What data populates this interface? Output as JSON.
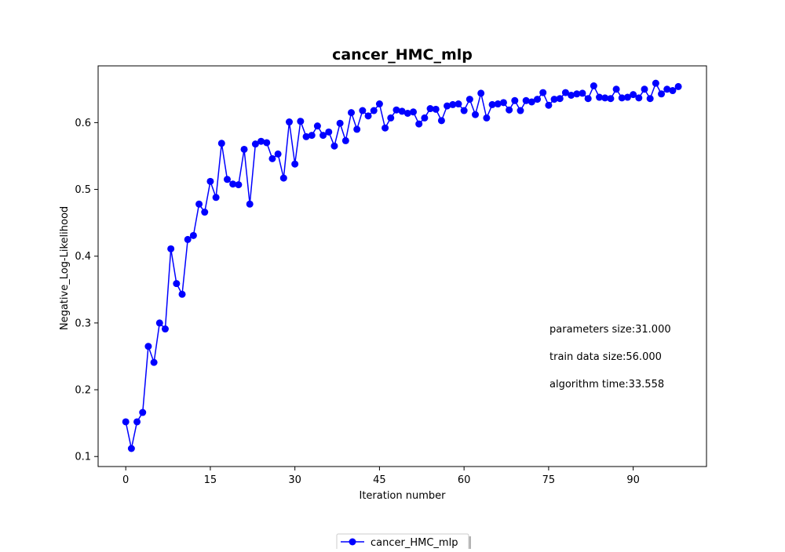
{
  "chart_data": {
    "type": "line",
    "title": "cancer_HMC_mlp",
    "xlabel": "Iteration number",
    "ylabel": "Negative_Log-Likelihood",
    "xlim": [
      -4.9,
      103
    ],
    "ylim": [
      0.085,
      0.685
    ],
    "xticks": [
      0,
      15,
      30,
      45,
      60,
      75,
      90
    ],
    "yticks": [
      0.1,
      0.2,
      0.3,
      0.4,
      0.5,
      0.6
    ],
    "ytick_labels": [
      "0.1",
      "0.2",
      "0.3",
      "0.4",
      "0.5",
      "0.6"
    ],
    "grid": false,
    "legend_position": "bottom-center",
    "series": [
      {
        "name": "cancer_HMC_mlp",
        "color": "#0000ff",
        "marker": "circle",
        "x": [
          0,
          1,
          2,
          3,
          4,
          5,
          6,
          7,
          8,
          9,
          10,
          11,
          12,
          13,
          14,
          15,
          16,
          17,
          18,
          19,
          20,
          21,
          22,
          23,
          24,
          25,
          26,
          27,
          28,
          29,
          30,
          31,
          32,
          33,
          34,
          35,
          36,
          37,
          38,
          39,
          40,
          41,
          42,
          43,
          44,
          45,
          46,
          47,
          48,
          49,
          50,
          51,
          52,
          53,
          54,
          55,
          56,
          57,
          58,
          59,
          60,
          61,
          62,
          63,
          64,
          65,
          66,
          67,
          68,
          69,
          70,
          71,
          72,
          73,
          74,
          75,
          76,
          77,
          78,
          79,
          80,
          81,
          82,
          83,
          84,
          85,
          86,
          87,
          88,
          89,
          90,
          91,
          92,
          93,
          94,
          95,
          96,
          97,
          98
        ],
        "values": [
          0.152,
          0.112,
          0.152,
          0.166,
          0.265,
          0.241,
          0.3,
          0.291,
          0.411,
          0.359,
          0.343,
          0.425,
          0.431,
          0.478,
          0.466,
          0.512,
          0.488,
          0.569,
          0.515,
          0.508,
          0.507,
          0.56,
          0.478,
          0.568,
          0.572,
          0.57,
          0.546,
          0.553,
          0.517,
          0.601,
          0.538,
          0.602,
          0.579,
          0.581,
          0.595,
          0.581,
          0.586,
          0.565,
          0.599,
          0.573,
          0.615,
          0.59,
          0.618,
          0.61,
          0.618,
          0.628,
          0.592,
          0.607,
          0.619,
          0.617,
          0.614,
          0.616,
          0.598,
          0.607,
          0.621,
          0.62,
          0.603,
          0.625,
          0.627,
          0.628,
          0.618,
          0.635,
          0.612,
          0.644,
          0.607,
          0.627,
          0.628,
          0.63,
          0.619,
          0.633,
          0.618,
          0.633,
          0.631,
          0.635,
          0.645,
          0.626,
          0.635,
          0.636,
          0.645,
          0.641,
          0.643,
          0.644,
          0.636,
          0.655,
          0.638,
          0.637,
          0.636,
          0.65,
          0.637,
          0.638,
          0.642,
          0.637,
          0.65,
          0.636,
          0.659,
          0.643,
          0.65,
          0.648,
          0.654
        ]
      }
    ],
    "annotations": [
      "parameters size:31.000",
      "train data size:56.000",
      "algorithm time:33.558"
    ]
  }
}
